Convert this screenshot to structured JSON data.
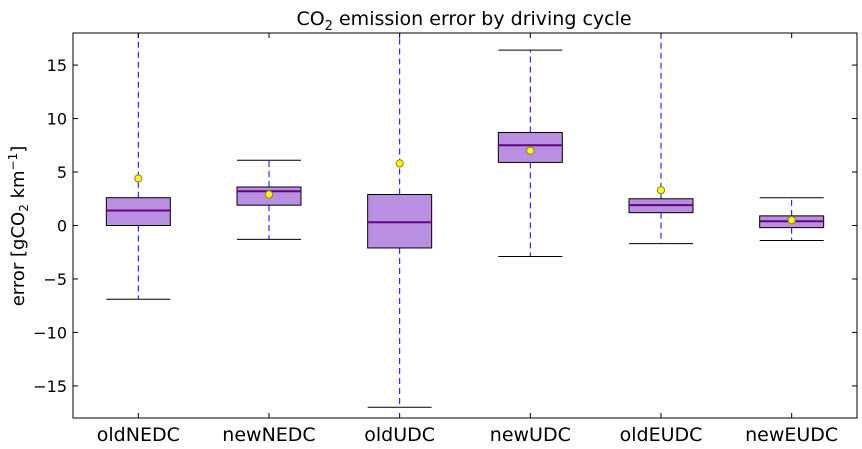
{
  "chart_data": {
    "type": "boxplot",
    "title_main": "CO",
    "title_sub": "2",
    "title_rest": " emission error by driving cycle",
    "ylabel_pre": "error [gCO",
    "ylabel_sub": "2",
    "ylabel_mid": " km",
    "ylabel_sup": "−1",
    "ylabel_post": "]",
    "ylim": [
      -18,
      18
    ],
    "yticks": [
      -15,
      -10,
      -5,
      0,
      5,
      10,
      15
    ],
    "categories": [
      "oldNEDC",
      "newNEDC",
      "oldUDC",
      "newUDC",
      "oldEUDC",
      "newEUDC"
    ],
    "boxes": [
      {
        "name": "oldNEDC",
        "whisker_low": -6.9,
        "q1": 0.0,
        "median": 1.4,
        "q3": 2.6,
        "whisker_high": 18.5,
        "mean": 4.4
      },
      {
        "name": "newNEDC",
        "whisker_low": -1.3,
        "q1": 1.9,
        "median": 3.2,
        "q3": 3.6,
        "whisker_high": 6.1,
        "mean": 2.9
      },
      {
        "name": "oldUDC",
        "whisker_low": -17.0,
        "q1": -2.1,
        "median": 0.3,
        "q3": 2.9,
        "whisker_high": 18.5,
        "mean": 5.8
      },
      {
        "name": "newUDC",
        "whisker_low": -2.9,
        "q1": 5.9,
        "median": 7.5,
        "q3": 8.7,
        "whisker_high": 16.4,
        "mean": 7.0
      },
      {
        "name": "oldEUDC",
        "whisker_low": -1.7,
        "q1": 1.2,
        "median": 1.9,
        "q3": 2.5,
        "whisker_high": 18.5,
        "mean": 3.3
      },
      {
        "name": "newEUDC",
        "whisker_low": -1.4,
        "q1": -0.2,
        "median": 0.4,
        "q3": 0.9,
        "whisker_high": 2.6,
        "mean": 0.5
      }
    ],
    "colors": {
      "box_fill": "#b98fe1",
      "median": "#6b0080",
      "whisker": "#0000ff",
      "mean_fill": "#ffff00",
      "mean_edge": "#8a8a00"
    },
    "grid": false
  }
}
